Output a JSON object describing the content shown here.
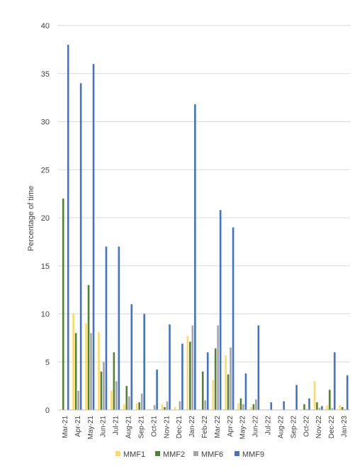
{
  "chart_data": {
    "type": "bar",
    "title": "",
    "xlabel": "",
    "ylabel": "Percentage of time",
    "ylim": [
      0,
      40
    ],
    "yticks": [
      0,
      5,
      10,
      15,
      20,
      25,
      30,
      35,
      40
    ],
    "grid": true,
    "legend_position": "bottom",
    "categories": [
      "Mar-21",
      "Apr-21",
      "May-21",
      "Jun-21",
      "Jul-21",
      "Aug-21",
      "Sep-21",
      "Oct-21",
      "Nov-21",
      "Dec-21",
      "Jan-22",
      "Feb-22",
      "Mar-22",
      "Apr-22",
      "May-22",
      "Jun-22",
      "Jul-22",
      "Aug-22",
      "Sep-22",
      "Oct-22",
      "Nov-22",
      "Dec-22",
      "Jan-23"
    ],
    "series": [
      {
        "name": "MMF1",
        "color": "#ffd966",
        "values": [
          0,
          10,
          9,
          8.1,
          2,
          0.6,
          0.7,
          0.1,
          0.6,
          0.3,
          7.7,
          0,
          3.1,
          5.7,
          0.7,
          0.3,
          0,
          0,
          0,
          0,
          3,
          0.5,
          0.5
        ]
      },
      {
        "name": "MMF2",
        "color": "#548235",
        "values": [
          22,
          8,
          13,
          4,
          6,
          2.5,
          0.8,
          0,
          0.3,
          0,
          7.1,
          4,
          6.4,
          3.7,
          1.2,
          0.6,
          0,
          0,
          0,
          0.6,
          0.8,
          2.1,
          0.3
        ]
      },
      {
        "name": "MMF6",
        "color": "#a5a5a5",
        "values": [
          0,
          2,
          8,
          5,
          3,
          1.4,
          1.7,
          0.5,
          0.9,
          0.9,
          8.8,
          1,
          8.8,
          6.5,
          0.6,
          1.1,
          0,
          0,
          0,
          0.1,
          0.2,
          0.2,
          0.1
        ]
      },
      {
        "name": "MMF9",
        "color": "#4472c4",
        "values": [
          38,
          34,
          36,
          17,
          17,
          11,
          10,
          4.2,
          8.9,
          6.9,
          31.8,
          6,
          20.8,
          19,
          3.8,
          8.8,
          0.8,
          0.9,
          2.6,
          1.2,
          0.4,
          6,
          3.6
        ]
      }
    ]
  }
}
